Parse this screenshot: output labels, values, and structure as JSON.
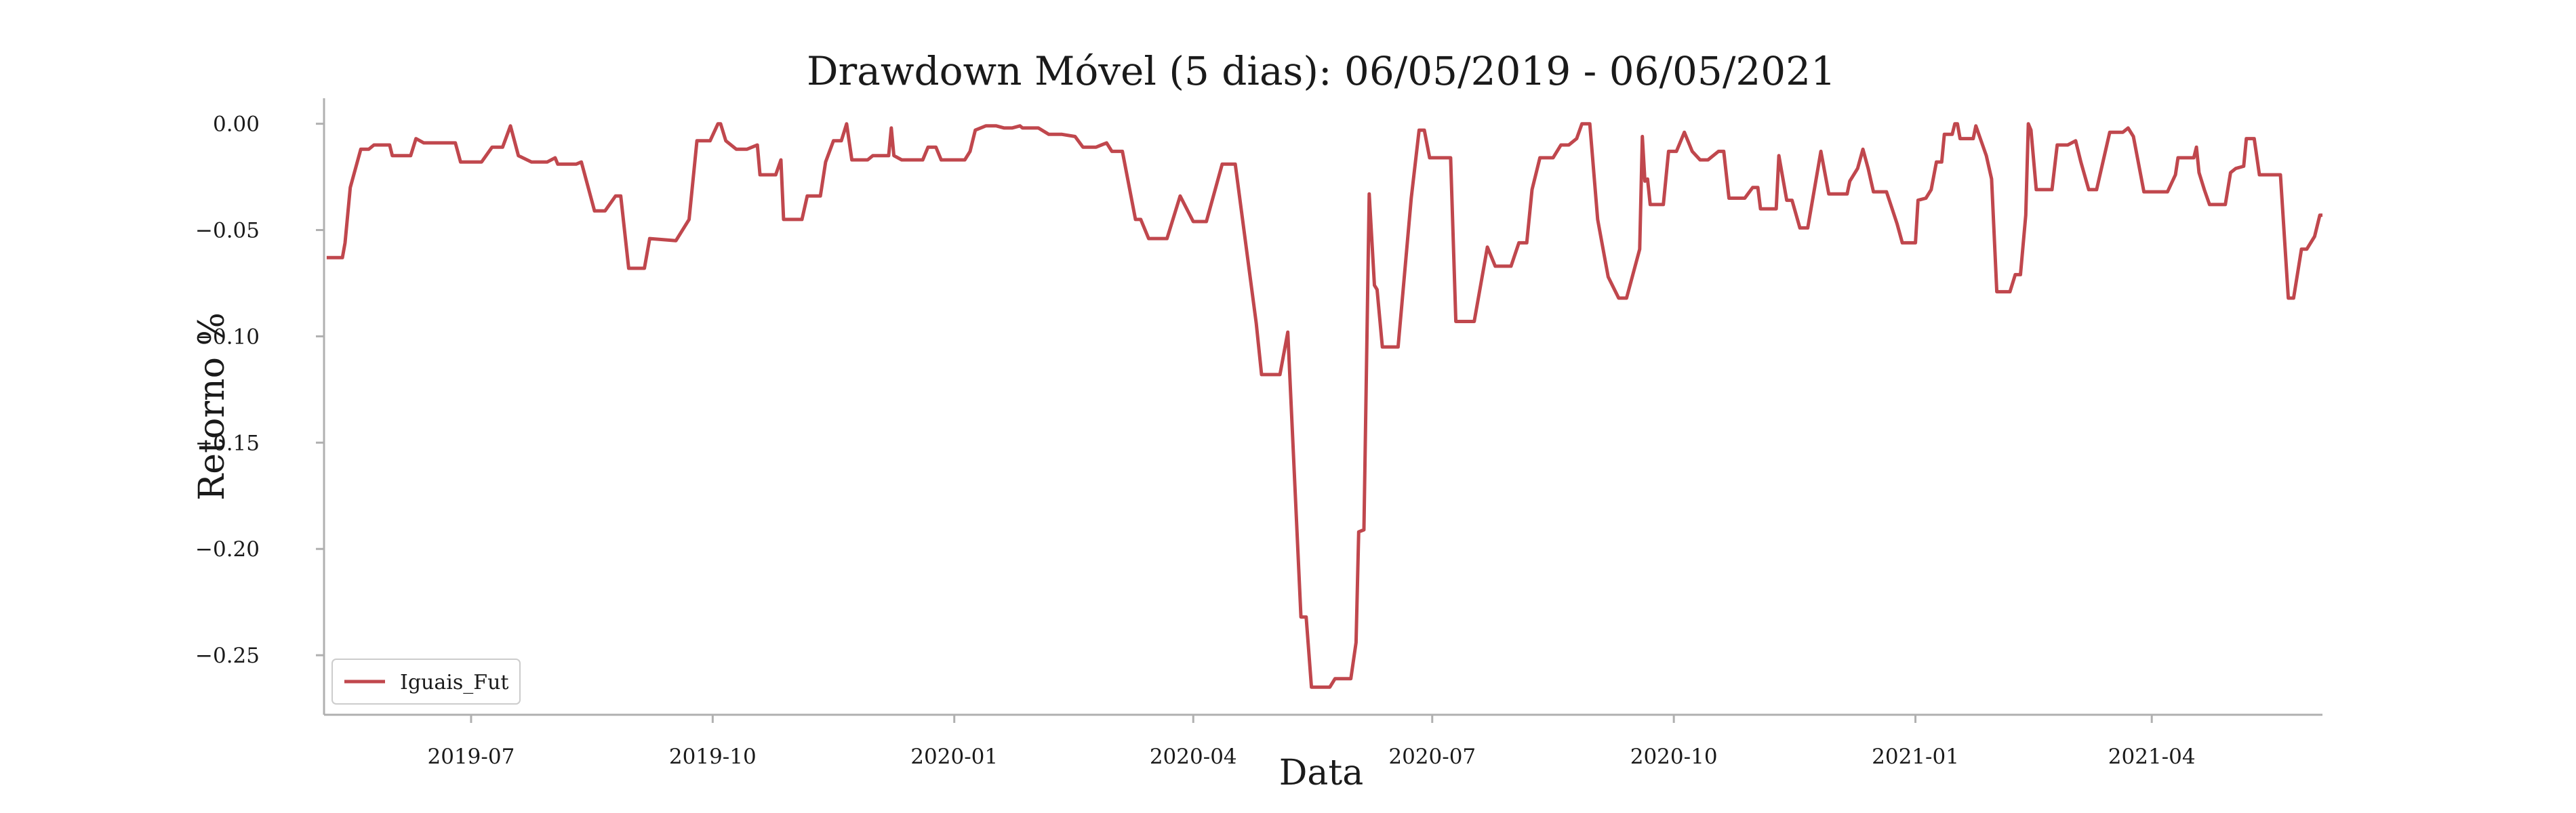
{
  "chart_data": {
    "type": "line",
    "title": "Drawdown Móvel (5 dias): 06/05/2019 - 06/05/2021",
    "xlabel": "Data",
    "ylabel": "Retorno %",
    "ylim": [
      -0.278,
      0.012
    ],
    "xlim": [
      "2019-05-06",
      "2021-06-05"
    ],
    "y_ticks": [
      0.0,
      -0.05,
      -0.1,
      -0.15,
      -0.2,
      -0.25
    ],
    "y_tick_labels": [
      "0.00",
      "−0.05",
      "−0.10",
      "−0.15",
      "−0.20",
      "−0.25"
    ],
    "x_ticks": [
      "2019-07-01",
      "2019-10-01",
      "2020-01-01",
      "2020-04-01",
      "2020-07-01",
      "2020-10-01",
      "2021-01-01",
      "2021-04-01"
    ],
    "x_tick_labels": [
      "2019-07",
      "2019-10",
      "2020-01",
      "2020-04",
      "2020-07",
      "2020-10",
      "2021-01",
      "2021-04"
    ],
    "grid": false,
    "legend_position": "lower-left",
    "series": [
      {
        "name": "Iguais_Fut",
        "color": "#c0474d",
        "points": [
          [
            "2019-05-07",
            -0.063
          ],
          [
            "2019-05-13",
            -0.063
          ],
          [
            "2019-05-14",
            -0.056
          ],
          [
            "2019-05-16",
            -0.03
          ],
          [
            "2019-05-20",
            -0.012
          ],
          [
            "2019-05-23",
            -0.012
          ],
          [
            "2019-05-25",
            -0.01
          ],
          [
            "2019-05-31",
            -0.01
          ],
          [
            "2019-06-01",
            -0.015
          ],
          [
            "2019-06-08",
            -0.015
          ],
          [
            "2019-06-10",
            -0.007
          ],
          [
            "2019-06-13",
            -0.009
          ],
          [
            "2019-06-25",
            -0.009
          ],
          [
            "2019-06-27",
            -0.018
          ],
          [
            "2019-07-05",
            -0.018
          ],
          [
            "2019-07-09",
            -0.011
          ],
          [
            "2019-07-13",
            -0.011
          ],
          [
            "2019-07-16",
            -0.001
          ],
          [
            "2019-07-19",
            -0.015
          ],
          [
            "2019-07-24",
            -0.018
          ],
          [
            "2019-07-30",
            -0.018
          ],
          [
            "2019-08-02",
            -0.016
          ],
          [
            "2019-08-03",
            -0.019
          ],
          [
            "2019-08-10",
            -0.019
          ],
          [
            "2019-08-12",
            -0.018
          ],
          [
            "2019-08-17",
            -0.041
          ],
          [
            "2019-08-21",
            -0.041
          ],
          [
            "2019-08-25",
            -0.034
          ],
          [
            "2019-08-27",
            -0.034
          ],
          [
            "2019-08-30",
            -0.068
          ],
          [
            "2019-09-05",
            -0.068
          ],
          [
            "2019-09-07",
            -0.054
          ],
          [
            "2019-09-17",
            -0.055
          ],
          [
            "2019-09-22",
            -0.045
          ],
          [
            "2019-09-25",
            -0.008
          ],
          [
            "2019-09-30",
            -0.008
          ],
          [
            "2019-10-03",
            0.0
          ],
          [
            "2019-10-04",
            0.0
          ],
          [
            "2019-10-06",
            -0.008
          ],
          [
            "2019-10-10",
            -0.012
          ],
          [
            "2019-10-14",
            -0.012
          ],
          [
            "2019-10-18",
            -0.01
          ],
          [
            "2019-10-19",
            -0.024
          ],
          [
            "2019-10-25",
            -0.024
          ],
          [
            "2019-10-27",
            -0.017
          ],
          [
            "2019-10-28",
            -0.045
          ],
          [
            "2019-11-04",
            -0.045
          ],
          [
            "2019-11-06",
            -0.034
          ],
          [
            "2019-11-11",
            -0.034
          ],
          [
            "2019-11-13",
            -0.018
          ],
          [
            "2019-11-16",
            -0.008
          ],
          [
            "2019-11-19",
            -0.008
          ],
          [
            "2019-11-21",
            0.0
          ],
          [
            "2019-11-23",
            -0.017
          ],
          [
            "2019-11-29",
            -0.017
          ],
          [
            "2019-12-01",
            -0.015
          ],
          [
            "2019-12-07",
            -0.015
          ],
          [
            "2019-12-08",
            -0.002
          ],
          [
            "2019-12-09",
            -0.015
          ],
          [
            "2019-12-12",
            -0.017
          ],
          [
            "2019-12-20",
            -0.017
          ],
          [
            "2019-12-22",
            -0.011
          ],
          [
            "2019-12-25",
            -0.011
          ],
          [
            "2019-12-27",
            -0.017
          ],
          [
            "2020-01-05",
            -0.017
          ],
          [
            "2020-01-07",
            -0.013
          ],
          [
            "2020-01-09",
            -0.003
          ],
          [
            "2020-01-13",
            -0.001
          ],
          [
            "2020-01-17",
            -0.001
          ],
          [
            "2020-01-20",
            -0.002
          ],
          [
            "2020-01-23",
            -0.002
          ],
          [
            "2020-01-26",
            -0.001
          ],
          [
            "2020-01-27",
            -0.002
          ],
          [
            "2020-02-02",
            -0.002
          ],
          [
            "2020-02-06",
            -0.005
          ],
          [
            "2020-02-11",
            -0.005
          ],
          [
            "2020-02-16",
            -0.006
          ],
          [
            "2020-02-19",
            -0.011
          ],
          [
            "2020-02-24",
            -0.011
          ],
          [
            "2020-02-26",
            -0.01
          ],
          [
            "2020-02-28",
            -0.009
          ],
          [
            "2020-03-01",
            -0.013
          ],
          [
            "2020-03-05",
            -0.013
          ],
          [
            "2020-03-10",
            -0.045
          ],
          [
            "2020-03-12",
            -0.045
          ],
          [
            "2020-03-15",
            -0.054
          ],
          [
            "2020-03-22",
            -0.054
          ],
          [
            "2020-03-27",
            -0.034
          ],
          [
            "2020-04-01",
            -0.046
          ],
          [
            "2020-04-06",
            -0.046
          ],
          [
            "2020-04-12",
            -0.019
          ],
          [
            "2020-04-17",
            -0.019
          ],
          [
            "2020-04-25",
            -0.094
          ],
          [
            "2020-04-27",
            -0.118
          ],
          [
            "2020-05-04",
            -0.118
          ],
          [
            "2020-05-07",
            -0.098
          ],
          [
            "2020-05-12",
            -0.232
          ],
          [
            "2020-05-14",
            -0.232
          ],
          [
            "2020-05-16",
            -0.265
          ],
          [
            "2020-05-23",
            -0.265
          ],
          [
            "2020-05-25",
            -0.261
          ],
          [
            "2020-05-31",
            -0.261
          ],
          [
            "2020-06-02",
            -0.244
          ],
          [
            "2020-06-03",
            -0.192
          ],
          [
            "2020-06-05",
            -0.191
          ],
          [
            "2020-06-07",
            -0.033
          ],
          [
            "2020-06-09",
            -0.076
          ],
          [
            "2020-06-10",
            -0.078
          ],
          [
            "2020-06-12",
            -0.105
          ],
          [
            "2020-06-18",
            -0.105
          ],
          [
            "2020-06-23",
            -0.035
          ],
          [
            "2020-06-26",
            -0.003
          ],
          [
            "2020-06-28",
            -0.003
          ],
          [
            "2020-06-30",
            -0.016
          ],
          [
            "2020-07-08",
            -0.016
          ],
          [
            "2020-07-10",
            -0.093
          ],
          [
            "2020-07-17",
            -0.093
          ],
          [
            "2020-07-22",
            -0.058
          ],
          [
            "2020-07-25",
            -0.067
          ],
          [
            "2020-07-31",
            -0.067
          ],
          [
            "2020-08-03",
            -0.056
          ],
          [
            "2020-08-06",
            -0.056
          ],
          [
            "2020-08-08",
            -0.031
          ],
          [
            "2020-08-11",
            -0.016
          ],
          [
            "2020-08-16",
            -0.016
          ],
          [
            "2020-08-19",
            -0.01
          ],
          [
            "2020-08-22",
            -0.01
          ],
          [
            "2020-08-25",
            -0.007
          ],
          [
            "2020-08-27",
            0.0
          ],
          [
            "2020-08-30",
            0.0
          ],
          [
            "2020-09-02",
            -0.045
          ],
          [
            "2020-09-06",
            -0.072
          ],
          [
            "2020-09-10",
            -0.082
          ],
          [
            "2020-09-13",
            -0.082
          ],
          [
            "2020-09-18",
            -0.059
          ],
          [
            "2020-09-19",
            -0.006
          ],
          [
            "2020-09-20",
            -0.027
          ],
          [
            "2020-09-21",
            -0.026
          ],
          [
            "2020-09-22",
            -0.038
          ],
          [
            "2020-09-27",
            -0.038
          ],
          [
            "2020-09-29",
            -0.013
          ],
          [
            "2020-10-02",
            -0.013
          ],
          [
            "2020-10-05",
            -0.004
          ],
          [
            "2020-10-08",
            -0.013
          ],
          [
            "2020-10-11",
            -0.017
          ],
          [
            "2020-10-14",
            -0.017
          ],
          [
            "2020-10-18",
            -0.013
          ],
          [
            "2020-10-20",
            -0.013
          ],
          [
            "2020-10-22",
            -0.035
          ],
          [
            "2020-10-28",
            -0.035
          ],
          [
            "2020-10-31",
            -0.03
          ],
          [
            "2020-11-02",
            -0.03
          ],
          [
            "2020-11-03",
            -0.04
          ],
          [
            "2020-11-09",
            -0.04
          ],
          [
            "2020-11-10",
            -0.015
          ],
          [
            "2020-11-13",
            -0.036
          ],
          [
            "2020-11-15",
            -0.036
          ],
          [
            "2020-11-18",
            -0.049
          ],
          [
            "2020-11-21",
            -0.049
          ],
          [
            "2020-11-26",
            -0.013
          ],
          [
            "2020-11-29",
            -0.033
          ],
          [
            "2020-12-06",
            -0.033
          ],
          [
            "2020-12-07",
            -0.027
          ],
          [
            "2020-12-10",
            -0.021
          ],
          [
            "2020-12-12",
            -0.012
          ],
          [
            "2020-12-14",
            -0.021
          ],
          [
            "2020-12-16",
            -0.032
          ],
          [
            "2020-12-21",
            -0.032
          ],
          [
            "2020-12-25",
            -0.047
          ],
          [
            "2020-12-27",
            -0.056
          ],
          [
            "2021-01-01",
            -0.056
          ],
          [
            "2021-01-02",
            -0.036
          ],
          [
            "2021-01-05",
            -0.035
          ],
          [
            "2021-01-07",
            -0.031
          ],
          [
            "2021-01-09",
            -0.018
          ],
          [
            "2021-01-11",
            -0.018
          ],
          [
            "2021-01-12",
            -0.005
          ],
          [
            "2021-01-15",
            -0.005
          ],
          [
            "2021-01-16",
            0.0
          ],
          [
            "2021-01-17",
            0.0
          ],
          [
            "2021-01-18",
            -0.007
          ],
          [
            "2021-01-23",
            -0.007
          ],
          [
            "2021-01-24",
            -0.001
          ],
          [
            "2021-01-28",
            -0.015
          ],
          [
            "2021-01-30",
            -0.026
          ],
          [
            "2021-02-01",
            -0.079
          ],
          [
            "2021-02-06",
            -0.079
          ],
          [
            "2021-02-08",
            -0.071
          ],
          [
            "2021-02-10",
            -0.071
          ],
          [
            "2021-02-12",
            -0.043
          ],
          [
            "2021-02-13",
            0.0
          ],
          [
            "2021-02-14",
            -0.003
          ],
          [
            "2021-02-16",
            -0.031
          ],
          [
            "2021-02-22",
            -0.031
          ],
          [
            "2021-02-24",
            -0.01
          ],
          [
            "2021-02-28",
            -0.01
          ],
          [
            "2021-03-03",
            -0.008
          ],
          [
            "2021-03-05",
            -0.018
          ],
          [
            "2021-03-08",
            -0.031
          ],
          [
            "2021-03-11",
            -0.031
          ],
          [
            "2021-03-16",
            -0.004
          ],
          [
            "2021-03-21",
            -0.004
          ],
          [
            "2021-03-23",
            -0.002
          ],
          [
            "2021-03-25",
            -0.006
          ],
          [
            "2021-03-29",
            -0.032
          ],
          [
            "2021-04-03",
            -0.032
          ],
          [
            "2021-04-07",
            -0.032
          ],
          [
            "2021-04-10",
            -0.024
          ],
          [
            "2021-04-11",
            -0.016
          ],
          [
            "2021-04-15",
            -0.016
          ],
          [
            "2021-04-17",
            -0.016
          ],
          [
            "2021-04-18",
            -0.011
          ],
          [
            "2021-04-19",
            -0.023
          ],
          [
            "2021-04-21",
            -0.031
          ],
          [
            "2021-04-23",
            -0.038
          ],
          [
            "2021-04-29",
            -0.038
          ],
          [
            "2021-05-01",
            -0.023
          ],
          [
            "2021-05-03",
            -0.021
          ],
          [
            "2021-05-06",
            -0.02
          ],
          [
            "2021-05-07",
            -0.007
          ],
          [
            "2021-05-10",
            -0.007
          ],
          [
            "2021-05-12",
            -0.024
          ],
          [
            "2021-05-20",
            -0.024
          ],
          [
            "2021-05-23",
            -0.082
          ],
          [
            "2021-05-25",
            -0.082
          ],
          [
            "2021-05-28",
            -0.059
          ],
          [
            "2021-05-30",
            -0.059
          ],
          [
            "2021-06-02",
            -0.053
          ],
          [
            "2021-06-04",
            -0.043
          ],
          [
            "2021-06-05",
            -0.043
          ]
        ]
      }
    ]
  }
}
